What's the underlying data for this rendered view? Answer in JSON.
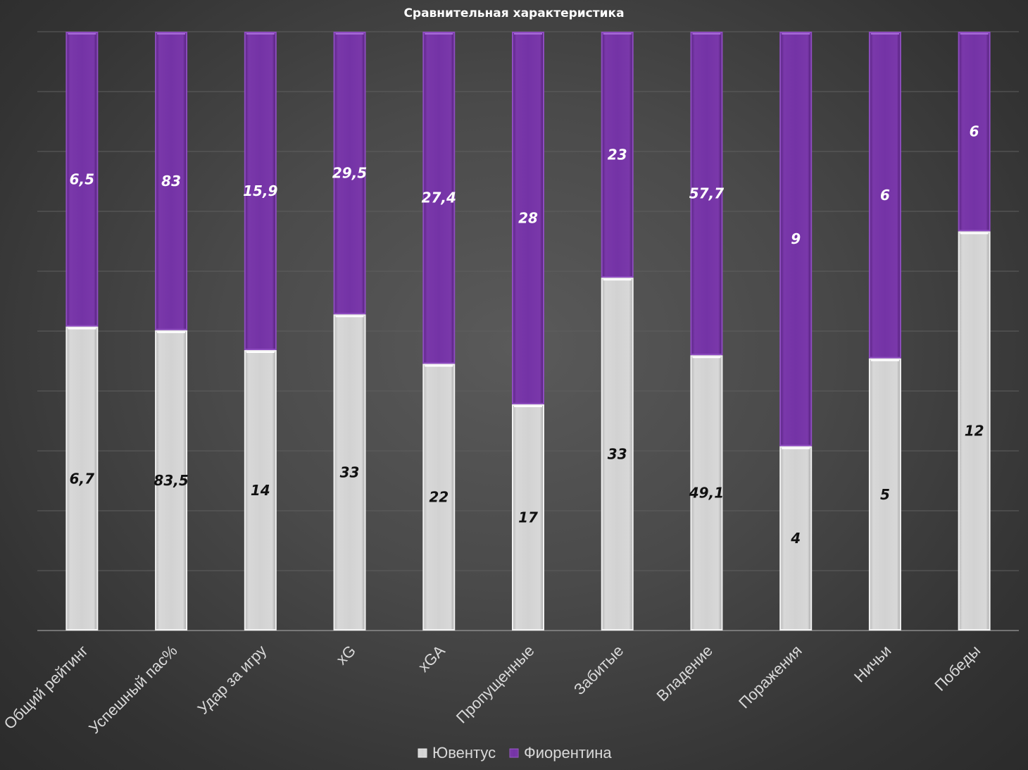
{
  "chart_data": {
    "type": "bar",
    "stacked": "percent",
    "title": "Сравнительная характеристика",
    "categories": [
      "Общий рейтинг",
      "Успешный пас%",
      "Удар за игру",
      "xG",
      "xGA",
      "Пропущенные",
      "Забитые",
      "Владение",
      "Поражения",
      "Ничьи",
      "Победы"
    ],
    "series": [
      {
        "name": "Ювентус",
        "color": "#d4d4d4",
        "values": [
          6.7,
          83.5,
          14,
          33,
          22,
          17,
          33,
          49.1,
          4,
          5,
          12
        ],
        "labels": [
          "6,7",
          "83,5",
          "14",
          "33",
          "22",
          "17",
          "33",
          "49,1",
          "4",
          "5",
          "12"
        ]
      },
      {
        "name": "Фиорентина",
        "color": "#7030a0",
        "values": [
          6.5,
          83,
          15.9,
          29.5,
          27.4,
          28,
          23,
          57.7,
          9,
          6,
          6
        ],
        "labels": [
          "6,5",
          "83",
          "15,9",
          "29,5",
          "27,4",
          "28",
          "23",
          "57,7",
          "9",
          "6",
          "6"
        ]
      }
    ],
    "ylim": [
      0,
      100
    ],
    "grid": true,
    "legend_position": "bottom"
  }
}
